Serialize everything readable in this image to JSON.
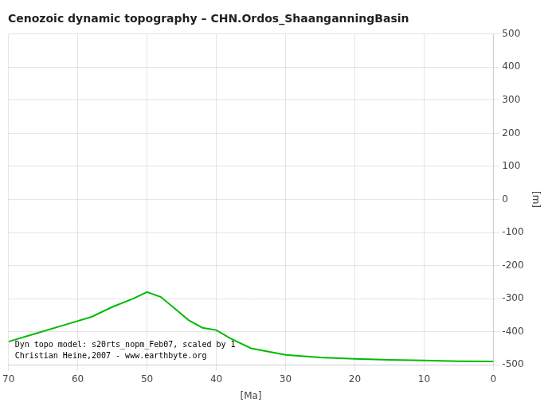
{
  "chart_data": {
    "type": "line",
    "title": "Cenozoic dynamic topography – CHN.Ordos_ShaanganningBasin",
    "x_label": "[Ma]",
    "y_label": "[m]",
    "annotations": [
      "Dyn topo model: s20rts_nopm_Feb07, scaled by 1",
      "Christian Heine,2007 - www.earthbyte.org"
    ],
    "x": [
      70,
      66,
      62,
      58,
      55,
      52,
      50,
      48,
      46,
      44,
      42,
      40,
      38,
      35,
      30,
      25,
      20,
      15,
      10,
      5,
      0
    ],
    "values": [
      -430,
      -405,
      -380,
      -355,
      -325,
      -300,
      -280,
      -295,
      -330,
      -365,
      -388,
      -395,
      -420,
      -450,
      -470,
      -478,
      -482,
      -485,
      -487,
      -489,
      -490
    ],
    "color": "#00bb00",
    "xlim": [
      70,
      0
    ],
    "ylim": [
      -500,
      500
    ],
    "xticks": [
      70,
      60,
      50,
      40,
      30,
      20,
      10,
      0
    ],
    "yticks": [
      -500,
      -400,
      -300,
      -200,
      -100,
      0,
      100,
      200,
      300,
      400,
      500
    ],
    "grid": true
  }
}
